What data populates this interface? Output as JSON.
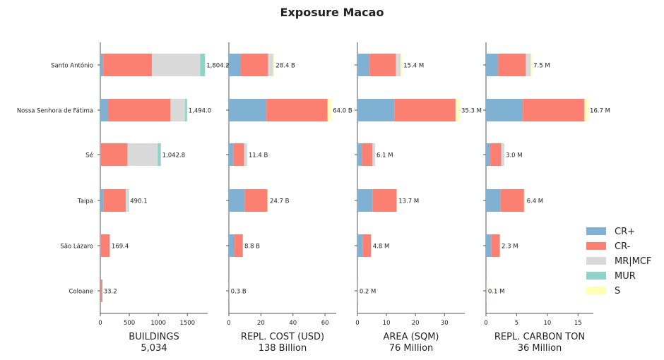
{
  "figure": {
    "title": "Exposure Macao"
  },
  "chart_data": {
    "type": "bar",
    "orientation": "horizontal",
    "stacked": true,
    "title": "Exposure Macao",
    "categories": [
      "Santo António",
      "Nossa Senhora de Fátima",
      "Sé",
      "Taipa",
      "São Lázaro",
      "Coloane"
    ],
    "legend": {
      "position": "right",
      "items": [
        {
          "name": "CR+",
          "color": "#80b1d3"
        },
        {
          "name": "CR-",
          "color": "#fb8072"
        },
        {
          "name": "MR|MCF",
          "color": "#d9d9d9"
        },
        {
          "name": "MUR",
          "color": "#8dd3c7"
        },
        {
          "name": "S",
          "color": "#ffffb3"
        }
      ]
    },
    "panels": [
      {
        "xlabel": "BUILDINGS",
        "total": "5,034",
        "xlim": [
          0,
          1850
        ],
        "ticks": [
          0,
          500,
          1000,
          1500
        ],
        "tick_labels": [
          "0",
          "500",
          "1000",
          "1500"
        ],
        "values": [
          [
            50,
            840,
            830,
            84.2,
            0
          ],
          [
            140,
            1070,
            250,
            34,
            0
          ],
          [
            10,
            460,
            520,
            52.8,
            0
          ],
          [
            60,
            380,
            40,
            10.1,
            0
          ],
          [
            10,
            150,
            6,
            3.4,
            0
          ],
          [
            5,
            25,
            3,
            0.2,
            0
          ]
        ],
        "labels": [
          "1,804.2",
          "1,494.0",
          "1,042.8",
          "490.1",
          "169.4",
          "33.2"
        ]
      },
      {
        "xlabel": "REPL. COST (USD)",
        "total": "138 Billion",
        "xlim": [
          0,
          67
        ],
        "ticks": [
          0,
          20,
          40,
          60
        ],
        "tick_labels": [
          "0",
          "20",
          "40",
          "60"
        ],
        "values": [
          [
            7.5,
            17,
            3.2,
            0,
            0.7
          ],
          [
            23.5,
            38,
            0.5,
            0,
            2.0
          ],
          [
            3.0,
            6.5,
            1.9,
            0,
            0
          ],
          [
            10.0,
            14,
            0.3,
            0,
            0.4
          ],
          [
            3.5,
            5.1,
            0.2,
            0,
            0
          ],
          [
            0.1,
            0.15,
            0.05,
            0,
            0
          ]
        ],
        "labels": [
          "28.4 B",
          "64.0 B",
          "11.4 B",
          "24.7 B",
          "8.8 B",
          "0.3 B"
        ]
      },
      {
        "xlabel": "AREA (SQM)",
        "total": "76 Million",
        "xlim": [
          0,
          37
        ],
        "ticks": [
          0,
          10,
          20,
          30
        ],
        "tick_labels": [
          "0",
          "10",
          "20",
          "30"
        ],
        "values": [
          [
            4.2,
            9.1,
            1.6,
            0,
            0.5
          ],
          [
            12.8,
            21.0,
            0.3,
            0,
            1.2
          ],
          [
            1.6,
            3.6,
            0.9,
            0,
            0
          ],
          [
            5.3,
            8.2,
            0.1,
            0,
            0.1
          ],
          [
            1.9,
            2.8,
            0.1,
            0,
            0
          ],
          [
            0.05,
            0.1,
            0.05,
            0,
            0
          ]
        ],
        "labels": [
          "15.4 M",
          "35.3 M",
          "6.1 M",
          "13.7 M",
          "4.8 M",
          "0.2 M"
        ]
      },
      {
        "xlabel": "REPL. CARBON TON",
        "total": "36 Million",
        "xlim": [
          0,
          17.5
        ],
        "ticks": [
          0,
          5,
          10,
          15
        ],
        "tick_labels": [
          "0",
          "5",
          "10",
          "15"
        ],
        "values": [
          [
            2.0,
            4.5,
            0.8,
            0,
            0.2
          ],
          [
            6.0,
            10.0,
            0.2,
            0,
            0.5
          ],
          [
            0.7,
            1.8,
            0.5,
            0,
            0
          ],
          [
            2.4,
            3.8,
            0.1,
            0,
            0.1
          ],
          [
            0.9,
            1.35,
            0.05,
            0,
            0
          ],
          [
            0.03,
            0.05,
            0.02,
            0,
            0
          ]
        ],
        "labels": [
          "7.5 M",
          "16.7 M",
          "3.0 M",
          "6.4 M",
          "2.3 M",
          "0.1 M"
        ]
      }
    ]
  }
}
